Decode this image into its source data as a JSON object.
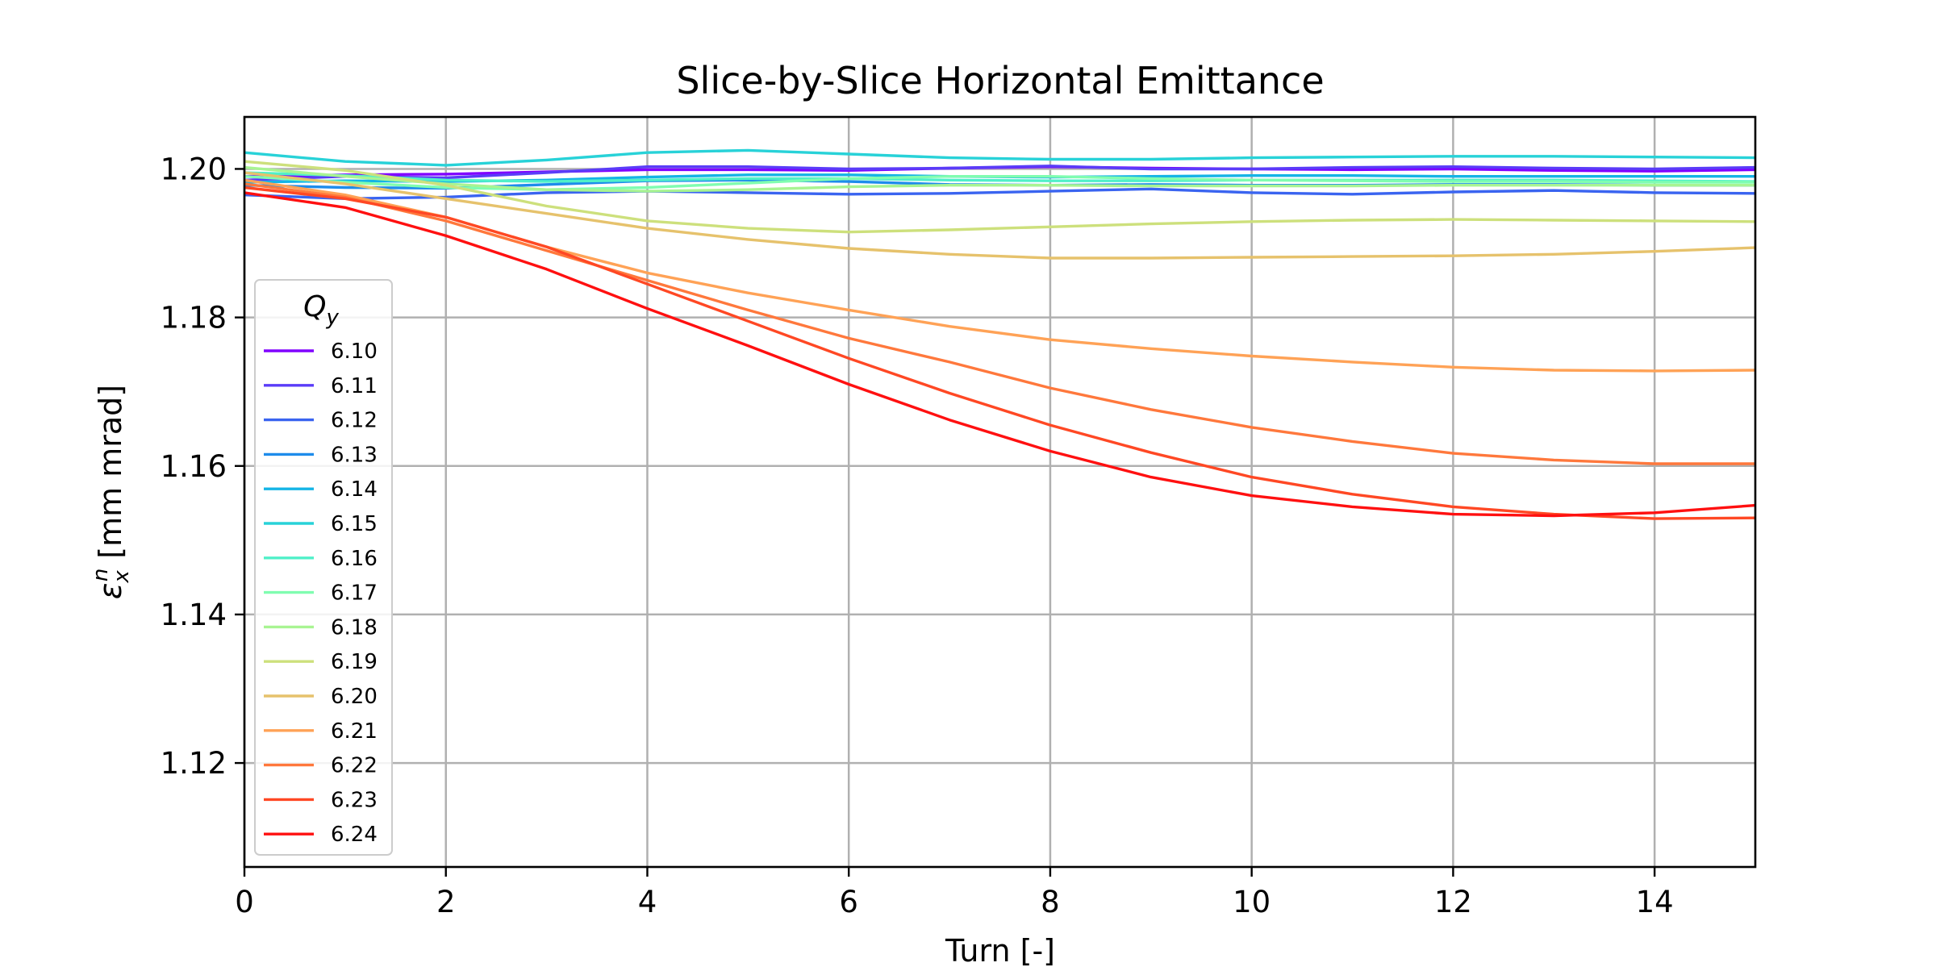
{
  "chart_data": {
    "type": "line",
    "title": "Slice-by-Slice Horizontal Emittance",
    "xlabel": "Turn [-]",
    "ylabel": "ε_x^n [mm mrad]",
    "ylabel_parts": {
      "symbol": "ε",
      "sub": "x",
      "sup": "n",
      "unit": "[mm mrad]"
    },
    "xlim": [
      0,
      15
    ],
    "ylim": [
      1.106,
      1.207
    ],
    "xticks": [
      0,
      2,
      4,
      6,
      8,
      10,
      12,
      14
    ],
    "yticks": [
      1.12,
      1.14,
      1.16,
      1.18,
      1.2
    ],
    "grid": true,
    "legend": {
      "title": "Q_y",
      "title_parts": {
        "symbol": "Q",
        "sub": "y"
      },
      "placement": "left"
    },
    "x": [
      0,
      1,
      2,
      3,
      4,
      5,
      6,
      7,
      8,
      9,
      10,
      11,
      12,
      13,
      14,
      15
    ],
    "series": [
      {
        "name": "6.10",
        "color": "#8000ff",
        "values": [
          1.199,
          1.1992,
          1.1993,
          1.1996,
          1.1999,
          1.1999,
          1.1998,
          1.2001,
          1.2003,
          1.2001,
          1.2,
          1.1999,
          1.2,
          1.1998,
          1.1997,
          1.1999
        ]
      },
      {
        "name": "6.11",
        "color": "#5a3cf8",
        "values": [
          1.1985,
          1.199,
          1.1988,
          1.1995,
          1.2003,
          1.2003,
          1.2,
          1.2001,
          1.2004,
          1.2,
          1.2,
          1.2002,
          1.2003,
          1.2001,
          1.2,
          1.2002
        ]
      },
      {
        "name": "6.12",
        "color": "#3a64f0",
        "values": [
          1.1965,
          1.196,
          1.1962,
          1.1968,
          1.197,
          1.1968,
          1.1966,
          1.1967,
          1.197,
          1.1973,
          1.1968,
          1.1966,
          1.1969,
          1.1971,
          1.1968,
          1.1967
        ]
      },
      {
        "name": "6.13",
        "color": "#1e8ceb",
        "values": [
          1.1978,
          1.1975,
          1.1974,
          1.1979,
          1.1984,
          1.1985,
          1.1983,
          1.1979,
          1.1978,
          1.1979,
          1.1978,
          1.1978,
          1.1979,
          1.1979,
          1.1978,
          1.1978
        ]
      },
      {
        "name": "6.14",
        "color": "#14b4e6",
        "values": [
          1.1982,
          1.1984,
          1.1983,
          1.1985,
          1.1989,
          1.1992,
          1.1992,
          1.199,
          1.1989,
          1.199,
          1.1991,
          1.1991,
          1.199,
          1.199,
          1.199,
          1.199
        ]
      },
      {
        "name": "6.15",
        "color": "#28d2d8",
        "values": [
          1.2022,
          1.201,
          1.2005,
          1.2012,
          1.2022,
          1.2025,
          1.202,
          1.2015,
          1.2013,
          1.2013,
          1.2015,
          1.2016,
          1.2017,
          1.2017,
          1.2016,
          1.2015
        ]
      },
      {
        "name": "6.16",
        "color": "#50f0c8",
        "values": [
          1.1995,
          1.1991,
          1.1985,
          1.1983,
          1.1985,
          1.1987,
          1.1987,
          1.1985,
          1.1984,
          1.1984,
          1.1985,
          1.1985,
          1.1985,
          1.1985,
          1.1984,
          1.1983
        ]
      },
      {
        "name": "6.17",
        "color": "#80fdb0",
        "values": [
          1.199,
          1.1982,
          1.1975,
          1.1972,
          1.1975,
          1.1981,
          1.1987,
          1.199,
          1.199,
          1.1987,
          1.1985,
          1.1984,
          1.1983,
          1.1983,
          1.1982,
          1.1982
        ]
      },
      {
        "name": "6.18",
        "color": "#a8f492",
        "values": [
          1.2002,
          1.199,
          1.198,
          1.1972,
          1.197,
          1.1972,
          1.1976,
          1.1978,
          1.1978,
          1.1977,
          1.1977,
          1.1977,
          1.1978,
          1.1978,
          1.1978,
          1.1978
        ]
      },
      {
        "name": "6.19",
        "color": "#cde07c",
        "values": [
          1.201,
          1.1998,
          1.1978,
          1.195,
          1.193,
          1.192,
          1.1915,
          1.1918,
          1.1922,
          1.1926,
          1.1929,
          1.1931,
          1.1932,
          1.1931,
          1.193,
          1.1929
        ]
      },
      {
        "name": "6.20",
        "color": "#e6c26c",
        "values": [
          1.1995,
          1.198,
          1.196,
          1.194,
          1.192,
          1.1905,
          1.1893,
          1.1885,
          1.188,
          1.188,
          1.1881,
          1.1882,
          1.1883,
          1.1885,
          1.1889,
          1.1894
        ]
      },
      {
        "name": "6.21",
        "color": "#ffa256",
        "values": [
          1.1985,
          1.1965,
          1.1935,
          1.1895,
          1.186,
          1.1833,
          1.181,
          1.1788,
          1.177,
          1.1758,
          1.1748,
          1.174,
          1.1733,
          1.1729,
          1.1728,
          1.1729
        ]
      },
      {
        "name": "6.22",
        "color": "#ff783c",
        "values": [
          1.198,
          1.1962,
          1.193,
          1.189,
          1.185,
          1.181,
          1.1772,
          1.174,
          1.1705,
          1.1676,
          1.1652,
          1.1633,
          1.1617,
          1.1608,
          1.1603,
          1.1603
        ]
      },
      {
        "name": "6.23",
        "color": "#ff4824",
        "values": [
          1.1975,
          1.196,
          1.1935,
          1.1895,
          1.1845,
          1.1795,
          1.1745,
          1.1698,
          1.1655,
          1.1618,
          1.1585,
          1.1562,
          1.1545,
          1.1535,
          1.1529,
          1.153
        ]
      },
      {
        "name": "6.24",
        "color": "#ff1010",
        "values": [
          1.1968,
          1.1948,
          1.191,
          1.1865,
          1.1812,
          1.1762,
          1.171,
          1.1662,
          1.162,
          1.1585,
          1.156,
          1.1545,
          1.1535,
          1.1533,
          1.1537,
          1.1547
        ]
      }
    ]
  }
}
